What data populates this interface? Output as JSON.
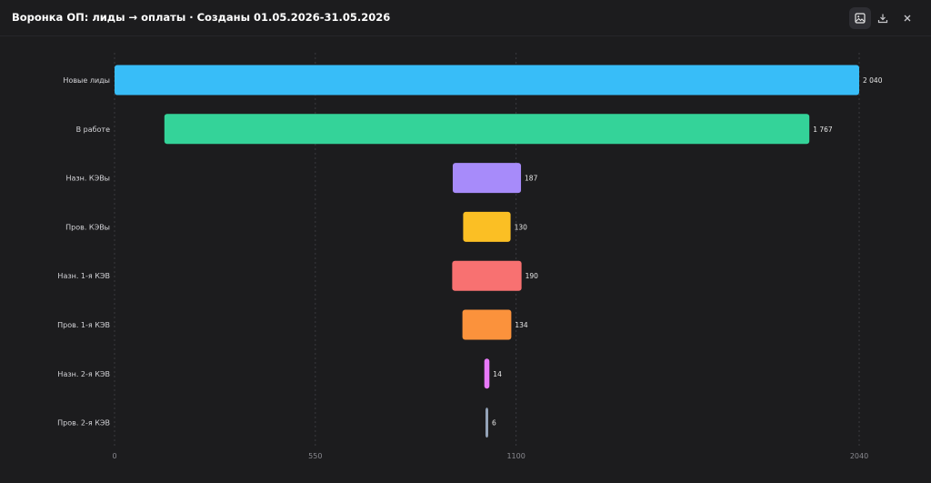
{
  "header": {
    "title": "Воронка ОП: лиды → оплаты · Созданы 01.05.2026-31.05.2026",
    "icons": [
      "image-download-icon",
      "download-icon",
      "close-icon"
    ]
  },
  "chart_data": {
    "type": "bar",
    "orientation": "horizontal-funnel",
    "categories": [
      "Новые лиды",
      "В работе",
      "Назн. КЭВы",
      "Пров. КЭВы",
      "Назн. 1-я КЭВ",
      "Пров. 1-я КЭВ",
      "Назн. 2-я КЭВ",
      "Пров. 2-я КЭВ"
    ],
    "values": [
      2040,
      1767,
      187,
      130,
      190,
      134,
      14,
      6
    ],
    "value_labels": [
      "2 040",
      "1 767",
      "187",
      "130",
      "190",
      "134",
      "14",
      "6"
    ],
    "colors": [
      "#38bdf8",
      "#34d399",
      "#a78bfa",
      "#fbbf24",
      "#f87171",
      "#fb923c",
      "#e879f9",
      "#94a3b8"
    ],
    "xticks": [
      0,
      550,
      1100,
      2040
    ],
    "xlim": [
      0,
      2040
    ],
    "grid": true,
    "bars_centered": true
  },
  "colors": {
    "background": "#1c1c1e",
    "grid": "#3a3a3f",
    "tick_text": "#8a8a90",
    "label_text": "#d4d4d8"
  }
}
